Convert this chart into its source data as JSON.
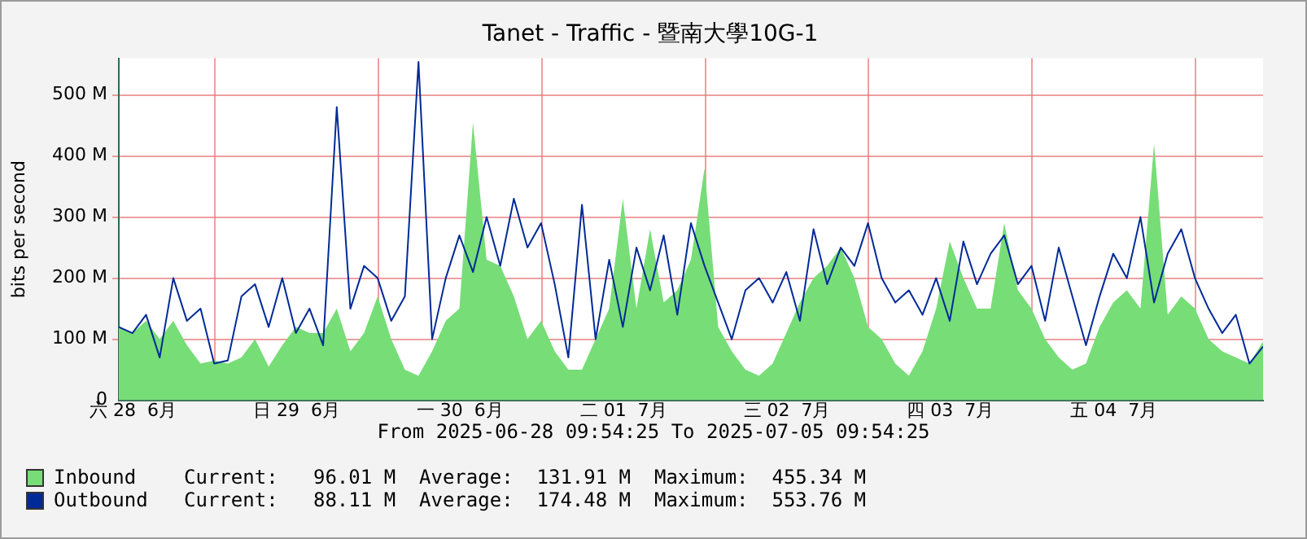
{
  "chart_data": {
    "type": "area",
    "title": "Tanet - Traffic - 暨南大學10G-1",
    "xlabel": "From 2025-06-28 09:54:25 To 2025-07-05 09:54:25",
    "ylabel": "bits per second",
    "x": [
      "2025-06-28T09:54",
      "2025-06-28T11:54",
      "2025-06-28T13:54",
      "2025-06-28T15:54",
      "2025-06-28T17:54",
      "2025-06-28T19:54",
      "2025-06-28T21:54",
      "2025-06-28T23:54",
      "2025-06-29T01:54",
      "2025-06-29T03:54",
      "2025-06-29T05:54",
      "2025-06-29T07:54",
      "2025-06-29T09:54",
      "2025-06-29T11:54",
      "2025-06-29T13:54",
      "2025-06-29T15:54",
      "2025-06-29T17:54",
      "2025-06-29T19:54",
      "2025-06-29T21:54",
      "2025-06-29T23:54",
      "2025-06-30T01:54",
      "2025-06-30T03:54",
      "2025-06-30T05:54",
      "2025-06-30T07:54",
      "2025-06-30T09:54",
      "2025-06-30T11:54",
      "2025-06-30T13:54",
      "2025-06-30T15:54",
      "2025-06-30T17:54",
      "2025-06-30T19:54",
      "2025-06-30T21:54",
      "2025-06-30T23:54",
      "2025-07-01T01:54",
      "2025-07-01T03:54",
      "2025-07-01T05:54",
      "2025-07-01T07:54",
      "2025-07-01T09:54",
      "2025-07-01T11:54",
      "2025-07-01T13:54",
      "2025-07-01T15:54",
      "2025-07-01T17:54",
      "2025-07-01T19:54",
      "2025-07-01T21:54",
      "2025-07-01T23:54",
      "2025-07-02T01:54",
      "2025-07-02T03:54",
      "2025-07-02T05:54",
      "2025-07-02T07:54",
      "2025-07-02T09:54",
      "2025-07-02T11:54",
      "2025-07-02T13:54",
      "2025-07-02T15:54",
      "2025-07-02T17:54",
      "2025-07-02T19:54",
      "2025-07-02T21:54",
      "2025-07-02T23:54",
      "2025-07-03T01:54",
      "2025-07-03T03:54",
      "2025-07-03T05:54",
      "2025-07-03T07:54",
      "2025-07-03T09:54",
      "2025-07-03T11:54",
      "2025-07-03T13:54",
      "2025-07-03T15:54",
      "2025-07-03T17:54",
      "2025-07-03T19:54",
      "2025-07-03T21:54",
      "2025-07-03T23:54",
      "2025-07-04T01:54",
      "2025-07-04T03:54",
      "2025-07-04T05:54",
      "2025-07-04T07:54",
      "2025-07-04T09:54",
      "2025-07-04T11:54",
      "2025-07-04T13:54",
      "2025-07-04T15:54",
      "2025-07-04T17:54",
      "2025-07-04T19:54",
      "2025-07-04T21:54",
      "2025-07-04T23:54",
      "2025-07-05T01:54",
      "2025-07-05T03:54",
      "2025-07-05T05:54",
      "2025-07-05T07:54",
      "2025-07-05T09:54"
    ],
    "series": [
      {
        "name": "Inbound",
        "color": "#77dd77",
        "values": [
          120,
          110,
          130,
          100,
          130,
          90,
          60,
          65,
          60,
          70,
          100,
          55,
          90,
          120,
          110,
          110,
          150,
          80,
          110,
          170,
          100,
          50,
          40,
          80,
          130,
          150,
          455,
          230,
          220,
          170,
          100,
          130,
          80,
          50,
          50,
          100,
          150,
          330,
          150,
          280,
          160,
          180,
          230,
          380,
          120,
          80,
          50,
          40,
          60,
          110,
          160,
          200,
          220,
          250,
          200,
          120,
          100,
          60,
          40,
          80,
          150,
          260,
          200,
          150,
          150,
          290,
          180,
          150,
          100,
          70,
          50,
          60,
          120,
          160,
          180,
          150,
          420,
          140,
          170,
          150,
          100,
          80,
          70,
          60,
          96
        ]
      },
      {
        "name": "Outbound",
        "type": "line",
        "color": "#002a97",
        "values": [
          120,
          110,
          140,
          70,
          200,
          130,
          150,
          60,
          65,
          170,
          190,
          120,
          200,
          110,
          150,
          90,
          480,
          150,
          220,
          200,
          130,
          170,
          554,
          100,
          200,
          270,
          210,
          300,
          220,
          330,
          250,
          290,
          190,
          70,
          320,
          100,
          230,
          120,
          250,
          180,
          270,
          140,
          290,
          220,
          160,
          100,
          180,
          200,
          160,
          210,
          130,
          280,
          190,
          250,
          220,
          290,
          200,
          160,
          180,
          140,
          200,
          130,
          260,
          190,
          240,
          270,
          190,
          220,
          130,
          250,
          170,
          90,
          170,
          240,
          200,
          300,
          160,
          240,
          280,
          200,
          150,
          110,
          140,
          60,
          88
        ]
      }
    ],
    "xlim": [
      "2025-06-28T09:54",
      "2025-07-05T09:54"
    ],
    "xticks": [
      {
        "value": "2025-06-28T12:00",
        "label": "六 28  6月"
      },
      {
        "value": "2025-06-29T00:00",
        "label": null
      },
      {
        "value": "2025-06-29T12:00",
        "label": "日 29  6月"
      },
      {
        "value": "2025-06-30T00:00",
        "label": null
      },
      {
        "value": "2025-06-30T12:00",
        "label": "一 30  6月"
      },
      {
        "value": "2025-07-01T00:00",
        "label": null
      },
      {
        "value": "2025-07-01T12:00",
        "label": "二 01  7月"
      },
      {
        "value": "2025-07-02T00:00",
        "label": null
      },
      {
        "value": "2025-07-02T12:00",
        "label": "三 02  7月"
      },
      {
        "value": "2025-07-03T00:00",
        "label": null
      },
      {
        "value": "2025-07-03T12:00",
        "label": "四 03  7月"
      },
      {
        "value": "2025-07-04T00:00",
        "label": null
      },
      {
        "value": "2025-07-04T12:00",
        "label": "五 04  7月"
      },
      {
        "value": "2025-07-05T00:00",
        "label": null
      }
    ],
    "ylim": [
      0,
      560
    ],
    "yticks": [
      0,
      {
        "value": 100,
        "label": "100 M"
      },
      {
        "value": 200,
        "label": "200 M"
      },
      {
        "value": 300,
        "label": "300 M"
      },
      {
        "value": 400,
        "label": "400 M"
      },
      {
        "value": 500,
        "label": "500 M"
      }
    ],
    "grid": true,
    "legend": "bottom left",
    "annotations": [
      "Current:   96.01 M  Average:  131.91 M  Maximum:  455.34 M",
      "Current:   88.11 M  Average:  174.48 M  Maximum:  553.76 M"
    ]
  }
}
